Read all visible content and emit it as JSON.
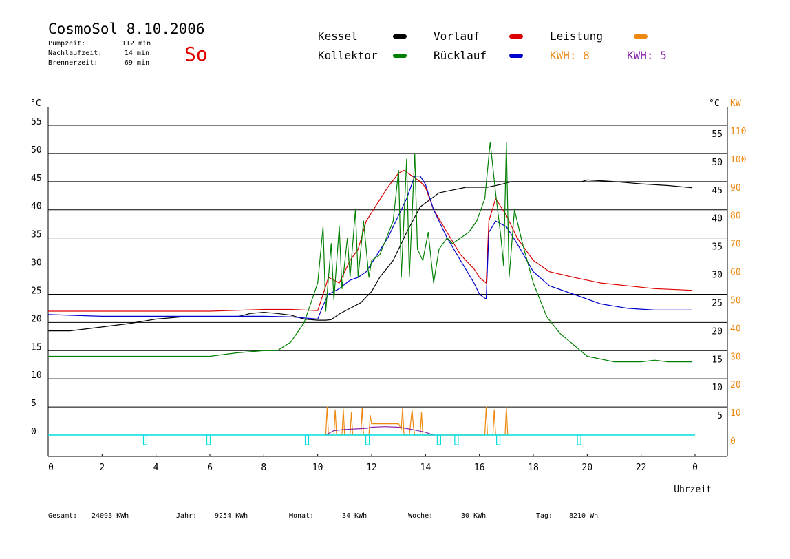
{
  "header": {
    "title": "CosmoSol 8.10.2006",
    "day": "So",
    "stats": [
      {
        "label": "Pumpzeit:",
        "value": "112 min"
      },
      {
        "label": "Nachlaufzeit:",
        "value": "14 min"
      },
      {
        "label": "Brennerzeit:",
        "value": "69 min"
      }
    ]
  },
  "legend": [
    {
      "label": "Kessel",
      "color": "#000000"
    },
    {
      "label": "Vorlauf",
      "color": "#dd0000"
    },
    {
      "label": "Leistung",
      "color": "#ee8811"
    },
    {
      "label": "Kollektor",
      "color": "#008000"
    },
    {
      "label": "Rücklauf",
      "color": "#0000cc"
    },
    {
      "label": "KWH: 8",
      "color": "#ee8811"
    },
    {
      "label": "KWH: 5",
      "color": "#8822aa"
    }
  ],
  "footer": [
    {
      "label": "Gesamt:",
      "value": "24093 KWh"
    },
    {
      "label": "Jahr:",
      "value": "9254 KWh"
    },
    {
      "label": "Monat:",
      "value": "34 KWh"
    },
    {
      "label": "Woche:",
      "value": "30 KWh"
    },
    {
      "label": "Tag:",
      "value": "8210 Wh"
    }
  ],
  "chart_data": {
    "type": "line",
    "xlabel": "Uhrzeit",
    "ylabel_left": "°C",
    "ylabel_right": "°C",
    "ylabel_right2": "KW",
    "xlim": [
      0,
      24
    ],
    "ylim": [
      -3.5,
      58
    ],
    "grid": true,
    "x_ticks": [
      "0",
      "2",
      "4",
      "6",
      "8",
      "10",
      "12",
      "14",
      "16",
      "18",
      "20",
      "22",
      "0"
    ],
    "y_ticks_left": [
      "55",
      "50",
      "45",
      "40",
      "35",
      "30",
      "25",
      "20",
      "15",
      "10",
      "5",
      "0"
    ],
    "y_ticks_right_c": [
      "55",
      "50",
      "45",
      "40",
      "35",
      "30",
      "25",
      "20",
      "15",
      "10",
      "5"
    ],
    "y_ticks_right_kw": [
      "110",
      "100",
      "90",
      "80",
      "70",
      "60",
      "50",
      "40",
      "30",
      "20",
      "10",
      "0"
    ],
    "colors": {
      "Kessel": "#000000",
      "Vorlauf": "#dd0000",
      "Ruecklauf": "#0000cc",
      "Kollektor": "#008000",
      "Leistung": "#ee8811",
      "KWH5": "#8822aa",
      "Pumpe": "#00dddd"
    },
    "series": [
      {
        "name": "Kessel",
        "key": "Kessel",
        "x": [
          0,
          0.8,
          2,
          3,
          4,
          5,
          6,
          7,
          7.5,
          8,
          8.5,
          9,
          9.5,
          10,
          10.3,
          10.5,
          10.8,
          11.2,
          11.6,
          12,
          12.3,
          12.8,
          13.3,
          13.8,
          14.5,
          15,
          15.5,
          16,
          16.3,
          16.8,
          17.2,
          18,
          19,
          19.8,
          20,
          21,
          22,
          23,
          23.9
        ],
        "values": [
          18.5,
          18.5,
          19.2,
          19.8,
          20.6,
          21,
          21,
          21,
          21.6,
          21.8,
          21.6,
          21.3,
          20.6,
          20.4,
          20.4,
          20.5,
          21.5,
          22.5,
          23.5,
          25.5,
          28,
          31,
          36,
          40.5,
          43,
          43.5,
          44,
          44,
          44,
          44.5,
          45,
          45,
          45,
          45,
          45.3,
          45,
          44.6,
          44.3,
          43.9
        ]
      },
      {
        "name": "Vorlauf",
        "key": "Vorlauf",
        "x": [
          0,
          2,
          4,
          6,
          8,
          9,
          10,
          10.2,
          10.4,
          10.8,
          11.2,
          11.5,
          11.8,
          12.2,
          12.6,
          13,
          13.2,
          13.5,
          13.8,
          14,
          14.3,
          14.8,
          15.3,
          15.8,
          16,
          16.2,
          16.25,
          16.35,
          16.6,
          17,
          17.4,
          18,
          18.6,
          19.5,
          20.5,
          21.5,
          22.5,
          23.9
        ],
        "values": [
          22,
          22,
          22,
          22,
          22.3,
          22.3,
          22.1,
          25,
          28,
          27,
          31,
          33,
          38,
          41,
          44,
          46.5,
          47,
          46,
          45,
          44,
          40,
          36,
          32,
          29.5,
          28,
          27.2,
          27,
          38,
          42,
          39,
          35,
          31,
          29,
          28,
          27,
          26.5,
          26,
          25.7
        ]
      },
      {
        "name": "Rücklauf",
        "key": "Ruecklauf",
        "x": [
          0,
          2,
          4,
          6,
          8,
          9,
          10,
          10.2,
          10.4,
          10.8,
          11.2,
          11.5,
          11.8,
          12.2,
          12.6,
          13,
          13.3,
          13.6,
          13.8,
          14,
          14.3,
          14.8,
          15.3,
          15.8,
          16,
          16.2,
          16.25,
          16.35,
          16.6,
          17,
          17.4,
          18,
          18.6,
          19.5,
          20.5,
          21.5,
          22.5,
          23.9
        ],
        "values": [
          21.4,
          21.1,
          21.1,
          21.1,
          21.1,
          21,
          20.6,
          23,
          25,
          26,
          27.5,
          28,
          29,
          32,
          35,
          39,
          42,
          46,
          46,
          44.5,
          40,
          35,
          31,
          27,
          25,
          24.3,
          24.2,
          36,
          38,
          37,
          34,
          29,
          26.5,
          25,
          23.3,
          22.5,
          22.2,
          22.2
        ]
      },
      {
        "name": "Kollektor",
        "key": "Kollektor",
        "x": [
          0,
          1,
          2,
          3,
          4,
          5,
          6,
          7,
          8,
          8.5,
          9,
          9.5,
          10,
          10.2,
          10.3,
          10.5,
          10.6,
          10.8,
          10.9,
          11.1,
          11.2,
          11.4,
          11.5,
          11.7,
          11.9,
          12,
          12.3,
          12.8,
          13,
          13.1,
          13.3,
          13.4,
          13.6,
          13.7,
          13.9,
          14.1,
          14.3,
          14.5,
          14.8,
          15,
          15.3,
          15.6,
          15.9,
          16.2,
          16.3,
          16.4,
          16.6,
          16.8,
          16.9,
          17,
          17.1,
          17.3,
          17.6,
          18,
          18.5,
          19,
          19.5,
          20,
          20.5,
          21,
          21.5,
          22,
          22.5,
          23,
          23.9
        ],
        "values": [
          14,
          14,
          14,
          14,
          14,
          14,
          14,
          14.6,
          15,
          15,
          16.5,
          20,
          27,
          37,
          22,
          34,
          24,
          37,
          26,
          35,
          28,
          40,
          28,
          38,
          28,
          31,
          32,
          38,
          47,
          28,
          49,
          28,
          50,
          33,
          31,
          36,
          27,
          33,
          35,
          34,
          35,
          36,
          38,
          42,
          47,
          52,
          43,
          35,
          30,
          52,
          28,
          40,
          34,
          27,
          21,
          18,
          16,
          14,
          13.5,
          13,
          13,
          13,
          13.3,
          13,
          13
        ]
      },
      {
        "name": "Leistung",
        "key": "Leistung",
        "x": [
          10.3,
          10.35,
          10.4,
          10.6,
          10.65,
          10.7,
          10.9,
          10.95,
          11,
          11.2,
          11.25,
          11.3,
          11.6,
          11.65,
          11.7,
          11.9,
          11.95,
          12,
          13,
          13.1,
          13.15,
          13.2,
          13.4,
          13.5,
          13.55,
          13.6,
          13.8,
          13.85,
          13.9,
          16.2,
          16.25,
          16.3,
          16.5,
          16.55,
          16.6,
          16.95,
          17,
          17.05
        ],
        "values": [
          0,
          5,
          0,
          0,
          4.5,
          0,
          0,
          4.6,
          0,
          0,
          4,
          0,
          0,
          4.8,
          0,
          0,
          3.5,
          2,
          2,
          1,
          4.8,
          0,
          0,
          4.5,
          1.5,
          0,
          0,
          4,
          0,
          0,
          5,
          0,
          0,
          4.5,
          0,
          0,
          5,
          0
        ]
      },
      {
        "name": "KWH: 5",
        "key": "KWH5",
        "x": [
          10.3,
          10.6,
          11,
          11.4,
          11.8,
          12,
          12.5,
          13,
          13.5,
          14,
          14.3
        ],
        "values": [
          0,
          0.8,
          1,
          1.1,
          1.2,
          1.4,
          1.5,
          1.4,
          1,
          0.5,
          0
        ]
      }
    ],
    "pump_pulses": [
      3.6,
      5.95,
      9.6,
      11.85,
      14.5,
      15.15,
      16.7,
      19.7
    ]
  }
}
